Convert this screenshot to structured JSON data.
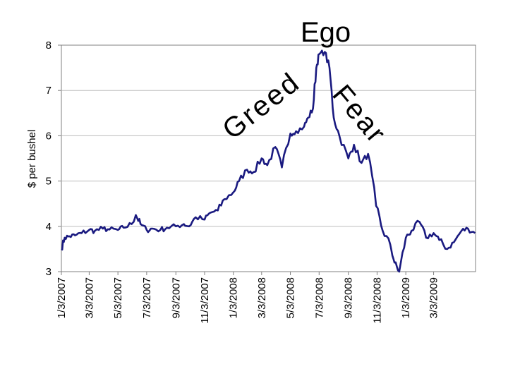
{
  "chart_data": {
    "type": "line",
    "ylabel": "$ per bushel",
    "xlabel": "",
    "ylim": [
      3,
      8
    ],
    "yticks": [
      "3",
      "4",
      "5",
      "6",
      "7",
      "8"
    ],
    "xticks": [
      "1/3/2007",
      "3/3/2007",
      "5/3/2007",
      "7/3/2007",
      "9/3/2007",
      "11/3/2007",
      "1/3/2008",
      "3/3/2008",
      "5/3/2008",
      "7/3/2008",
      "9/3/2008",
      "11/3/2008",
      "1/3/2009",
      "3/3/2009"
    ],
    "xlim": [
      "2007-01-03",
      "2009-05-31"
    ],
    "grid": true,
    "line_color": "#1a1a80",
    "annotations": [
      "Greed",
      "Ego",
      "Fear"
    ],
    "series": [
      {
        "x": [
          "2007-01-03",
          "2007-01-10",
          "2007-01-20",
          "2007-02-01",
          "2007-02-15",
          "2007-03-03",
          "2007-03-15",
          "2007-04-01",
          "2007-04-15",
          "2007-05-03",
          "2007-05-15",
          "2007-06-01",
          "2007-06-10",
          "2007-06-20",
          "2007-07-03",
          "2007-07-15",
          "2007-08-01",
          "2007-08-15",
          "2007-09-03",
          "2007-09-20",
          "2007-10-01",
          "2007-10-15",
          "2007-11-03",
          "2007-11-15",
          "2007-12-01",
          "2007-12-15",
          "2008-01-03",
          "2008-01-15",
          "2008-02-01",
          "2008-02-15",
          "2008-03-03",
          "2008-03-15",
          "2008-04-01",
          "2008-04-15",
          "2008-05-03",
          "2008-05-15",
          "2008-06-01",
          "2008-06-10",
          "2008-06-20",
          "2008-06-27",
          "2008-07-03",
          "2008-07-15",
          "2008-07-25",
          "2008-08-03",
          "2008-08-15",
          "2008-09-03",
          "2008-09-15",
          "2008-10-01",
          "2008-10-15",
          "2008-11-01",
          "2008-11-15",
          "2008-12-01",
          "2008-12-10",
          "2008-12-20",
          "2009-01-03",
          "2009-01-15",
          "2009-02-01",
          "2009-02-15",
          "2009-03-03",
          "2009-03-15",
          "2009-04-01",
          "2009-04-15",
          "2009-05-01",
          "2009-05-15",
          "2009-05-30"
        ],
        "y": [
          3.5,
          3.75,
          3.78,
          3.8,
          3.85,
          3.92,
          3.9,
          3.95,
          3.93,
          3.92,
          3.97,
          4.05,
          4.25,
          4.05,
          3.92,
          3.95,
          3.92,
          3.97,
          4.0,
          4.05,
          4.0,
          4.2,
          4.15,
          4.3,
          4.35,
          4.6,
          4.75,
          5.0,
          5.25,
          5.2,
          5.5,
          5.35,
          5.75,
          5.3,
          6.05,
          6.1,
          6.2,
          6.4,
          6.6,
          7.5,
          7.8,
          7.85,
          7.5,
          6.4,
          6.0,
          5.5,
          5.8,
          5.4,
          5.6,
          4.45,
          3.9,
          3.6,
          3.2,
          3.0,
          3.75,
          3.9,
          4.1,
          3.75,
          3.85,
          3.7,
          3.5,
          3.65,
          3.9,
          3.95,
          3.85
        ]
      }
    ]
  }
}
